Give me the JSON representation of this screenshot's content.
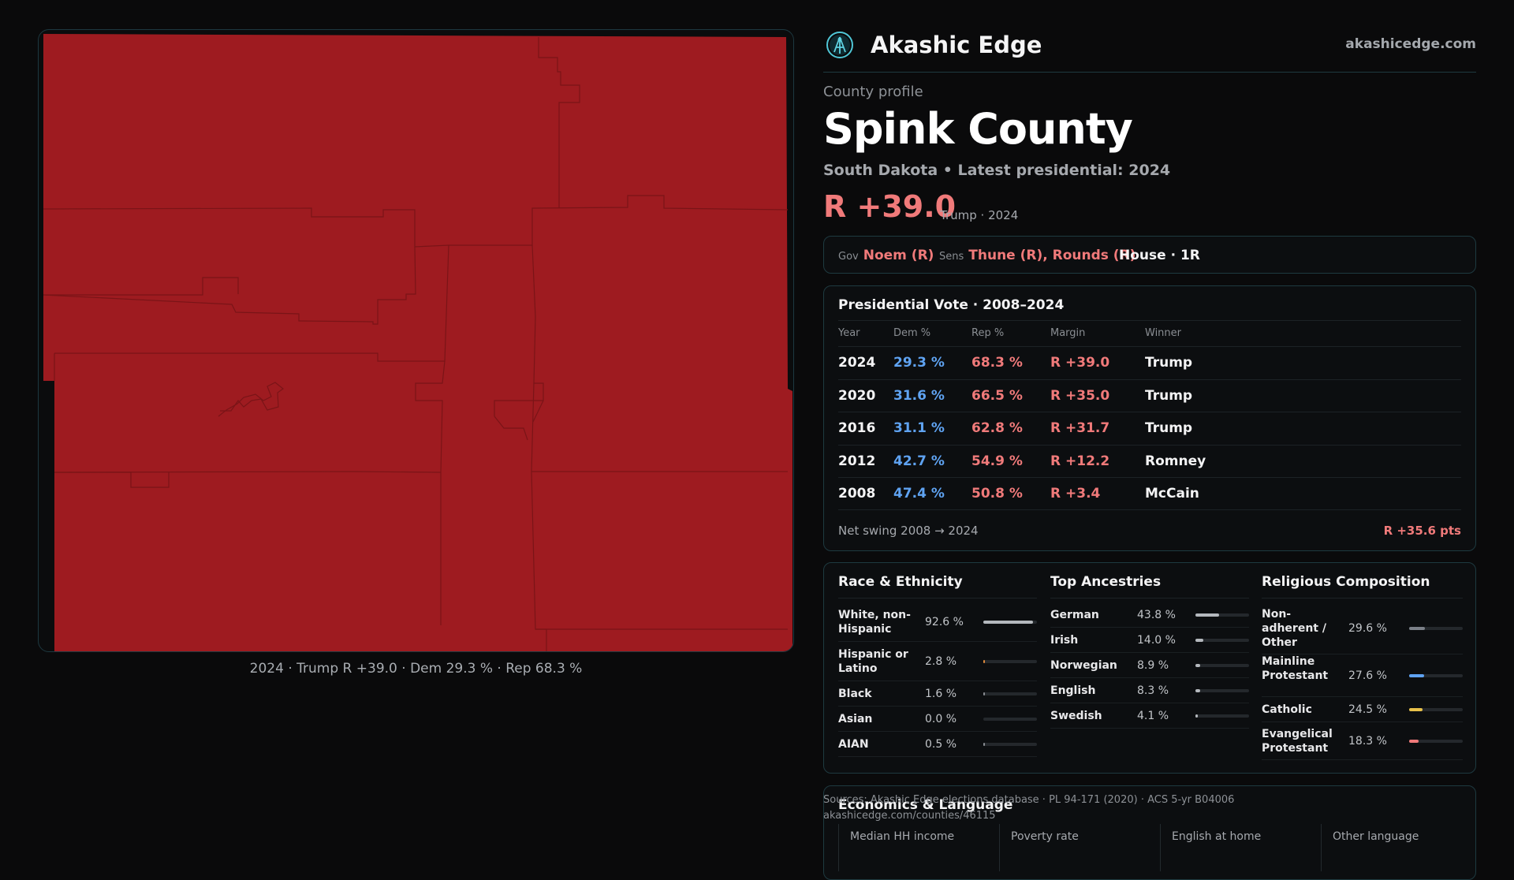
{
  "brand": {
    "name": "Akashic Edge",
    "url": "akashicedge.com",
    "logo_icon": "globe-figure-icon"
  },
  "header": {
    "kicker": "County profile",
    "county": "Spink County",
    "subline": "South Dakota • Latest presidential: 2024",
    "margin": "R +39.0",
    "margin_note": "Trump · 2024"
  },
  "officials": {
    "gov_label": "Gov",
    "gov_value": "Noem (R)",
    "sens_label": "Sens",
    "sens_value": "Thune (R), Rounds (R)",
    "house": "House · 1R"
  },
  "presidential": {
    "title": "Presidential Vote · 2008–2024",
    "columns": [
      "Year",
      "Dem %",
      "Rep %",
      "Margin",
      "Winner"
    ],
    "rows": [
      {
        "year": "2024",
        "dem": "29.3 %",
        "rep": "68.3 %",
        "margin": "R +39.0",
        "winner": "Trump"
      },
      {
        "year": "2020",
        "dem": "31.6 %",
        "rep": "66.5 %",
        "margin": "R +35.0",
        "winner": "Trump"
      },
      {
        "year": "2016",
        "dem": "31.1 %",
        "rep": "62.8 %",
        "margin": "R +31.7",
        "winner": "Trump"
      },
      {
        "year": "2012",
        "dem": "42.7 %",
        "rep": "54.9 %",
        "margin": "R +12.2",
        "winner": "Romney"
      },
      {
        "year": "2008",
        "dem": "47.4 %",
        "rep": "50.8 %",
        "margin": "R +3.4",
        "winner": "McCain"
      }
    ],
    "swing_label": "Net swing 2008 → 2024",
    "swing_value": "R +35.6 pts"
  },
  "race": {
    "title": "Race & Ethnicity",
    "items": [
      {
        "label": "White, non-Hispanic",
        "value": "92.6 %",
        "pct": 92.6,
        "color": "#b4b8bd"
      },
      {
        "label": "Hispanic or Latino",
        "value": "2.8 %",
        "pct": 2.8,
        "color": "#e08a3c"
      },
      {
        "label": "Black",
        "value": "1.6 %",
        "pct": 1.6,
        "color": "#8a8e93"
      },
      {
        "label": "Asian",
        "value": "0.0 %",
        "pct": 0.0,
        "color": "#8a8e93"
      },
      {
        "label": "AIAN",
        "value": "0.5 %",
        "pct": 0.5,
        "color": "#8a8e93"
      }
    ]
  },
  "ancestry": {
    "title": "Top Ancestries",
    "items": [
      {
        "label": "German",
        "value": "43.8 %",
        "pct": 43.8,
        "color": "#b4b8bd"
      },
      {
        "label": "Irish",
        "value": "14.0 %",
        "pct": 14.0,
        "color": "#b4b8bd"
      },
      {
        "label": "Norwegian",
        "value": "8.9 %",
        "pct": 8.9,
        "color": "#b4b8bd"
      },
      {
        "label": "English",
        "value": "8.3 %",
        "pct": 8.3,
        "color": "#b4b8bd"
      },
      {
        "label": "Swedish",
        "value": "4.1 %",
        "pct": 4.1,
        "color": "#b4b8bd"
      }
    ]
  },
  "religion": {
    "title": "Religious Composition",
    "items": [
      {
        "label": "Non-adherent / Other",
        "value": "29.6 %",
        "pct": 29.6,
        "color": "#7b8088"
      },
      {
        "label": "Mainline Protestant",
        "value": "27.6 %",
        "pct": 27.6,
        "color": "#5fa3f2"
      },
      {
        "label": "Catholic",
        "value": "24.5 %",
        "pct": 24.5,
        "color": "#e8c14a"
      },
      {
        "label": "Evangelical Protestant",
        "value": "18.3 %",
        "pct": 18.3,
        "color": "#f07a7a"
      }
    ]
  },
  "economics": {
    "title": "Economics & Language",
    "cols": [
      "Median HH income",
      "Poverty rate",
      "English at home",
      "Other language"
    ]
  },
  "sources": {
    "line1": "Sources: Akashic Edge elections database · PL 94-171 (2020) · ACS 5-yr B04006",
    "line2": "akashicedge.com/counties/46115"
  },
  "map": {
    "caption": "2024 · Trump R +39.0 · Dem 29.3 % · Rep 68.3 %",
    "fill_color": "#9e1b20",
    "line_color": "#7d1518"
  }
}
